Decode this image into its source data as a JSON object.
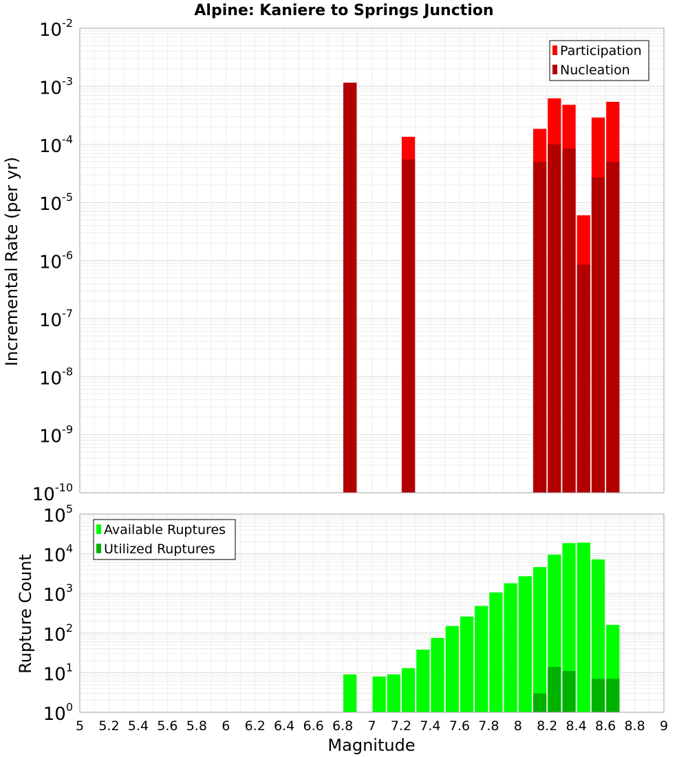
{
  "chart_data": [
    {
      "type": "bar",
      "title": "Alpine: Kaniere to Springs Junction",
      "xlabel": "",
      "ylabel": "Incremental Rate (per yr)",
      "yscale": "log",
      "ylim_exp": [
        -10,
        -2
      ],
      "xlim": [
        5,
        9
      ],
      "grid": true,
      "legend": {
        "position": "top-right",
        "entries": [
          {
            "name": "Participation",
            "color": "#ff0000"
          },
          {
            "name": "Nucleation",
            "color": "#b20000"
          }
        ]
      },
      "x": [
        6.85,
        7.25,
        8.15,
        8.25,
        8.35,
        8.45,
        8.55,
        8.65
      ],
      "series": [
        {
          "name": "Participation",
          "color": "#ff0000",
          "values": [
            0.00115,
            0.000135,
            0.000185,
            0.00062,
            0.00048,
            6e-06,
            0.00029,
            0.00054
          ]
        },
        {
          "name": "Nucleation",
          "color": "#b20000",
          "values": [
            0.00115,
            5.5e-05,
            5e-05,
            0.0001,
            8.5e-05,
            8.5e-07,
            2.7e-05,
            5e-05
          ]
        }
      ]
    },
    {
      "type": "bar",
      "title": "",
      "xlabel": "Magnitude",
      "ylabel": "Rupture Count",
      "yscale": "log",
      "ylim_exp": [
        0,
        5
      ],
      "xlim": [
        5,
        9
      ],
      "grid": true,
      "legend": {
        "position": "top-left",
        "entries": [
          {
            "name": "Available Ruptures",
            "color": "#00ff00"
          },
          {
            "name": "Utilized Ruptures",
            "color": "#00b200"
          }
        ]
      },
      "x": [
        6.85,
        6.95,
        7.05,
        7.15,
        7.25,
        7.35,
        7.45,
        7.55,
        7.65,
        7.75,
        7.85,
        7.95,
        8.05,
        8.15,
        8.25,
        8.35,
        8.45,
        8.55,
        8.65
      ],
      "series": [
        {
          "name": "Available Ruptures",
          "color": "#00ff00",
          "values": [
            9,
            0,
            8,
            9,
            13,
            38,
            75,
            150,
            260,
            480,
            1050,
            1800,
            2700,
            4600,
            9500,
            18500,
            19000,
            7200,
            160
          ]
        },
        {
          "name": "Utilized Ruptures",
          "color": "#00b200",
          "values": [
            1,
            0,
            0,
            0,
            1,
            0,
            0,
            0,
            0,
            0,
            0,
            0,
            0,
            3,
            14,
            11,
            1,
            7,
            7
          ]
        }
      ]
    }
  ],
  "x_ticks": [
    "5",
    "5.2",
    "5.4",
    "5.6",
    "5.8",
    "6",
    "6.2",
    "6.4",
    "6.6",
    "6.8",
    "7",
    "7.2",
    "7.4",
    "7.6",
    "7.8",
    "8",
    "8.2",
    "8.4",
    "8.6",
    "8.8",
    "9"
  ]
}
